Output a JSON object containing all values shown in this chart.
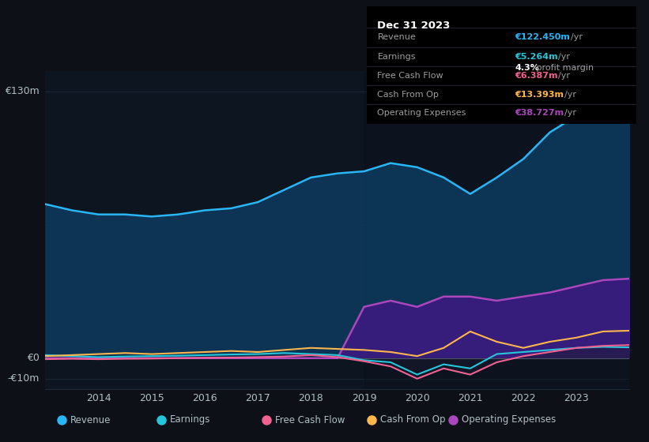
{
  "background_color": "#0d1117",
  "plot_bg_color": "#0d1520",
  "years": [
    2013.0,
    2013.5,
    2014.0,
    2014.5,
    2015.0,
    2015.5,
    2016.0,
    2016.5,
    2017.0,
    2017.5,
    2018.0,
    2018.5,
    2019.0,
    2019.5,
    2020.0,
    2020.5,
    2021.0,
    2021.5,
    2022.0,
    2022.5,
    2023.0,
    2023.5,
    2024.0
  ],
  "revenue": [
    75,
    72,
    70,
    70,
    69,
    70,
    72,
    73,
    76,
    82,
    88,
    90,
    91,
    95,
    93,
    88,
    80,
    88,
    97,
    110,
    118,
    125,
    122
  ],
  "earnings": [
    1.5,
    1.0,
    0.5,
    0.8,
    1.0,
    1.2,
    1.5,
    1.8,
    2.0,
    2.5,
    2.0,
    1.5,
    -1.0,
    -2.0,
    -8.0,
    -3.0,
    -5.0,
    2.0,
    3.0,
    4.0,
    5.0,
    5.5,
    5.264
  ],
  "free_cash_flow": [
    -0.5,
    -0.3,
    -0.5,
    -0.3,
    -0.2,
    0.0,
    0.2,
    0.3,
    0.5,
    0.8,
    1.5,
    0.5,
    -1.5,
    -4.0,
    -10.0,
    -5.0,
    -8.0,
    -2.0,
    1.0,
    3.0,
    5.0,
    6.0,
    6.387
  ],
  "cash_from_op": [
    1.0,
    1.5,
    2.0,
    2.5,
    2.0,
    2.5,
    3.0,
    3.5,
    3.0,
    4.0,
    5.0,
    4.5,
    4.0,
    3.0,
    1.0,
    5.0,
    13.0,
    8.0,
    5.0,
    8.0,
    10.0,
    13.0,
    13.393
  ],
  "operating_expenses": [
    0,
    0,
    0,
    0,
    0,
    0,
    0,
    0,
    0,
    0,
    0,
    0,
    25,
    28,
    25,
    30,
    30,
    28,
    30,
    32,
    35,
    38,
    38.727
  ],
  "revenue_color": "#29b6f6",
  "earnings_color": "#26c6da",
  "free_cash_flow_color": "#f06292",
  "cash_from_op_color": "#ffb74d",
  "operating_expenses_color": "#ab47bc",
  "revenue_fill_color": "#0d3a5e",
  "operating_expenses_fill_color": "#4a148c",
  "grid_color": "#1e2a3a",
  "text_color": "#b0bec5",
  "ylabel_top": "€130m",
  "ylabel_zero": "€0",
  "ylabel_bottom": "-€10m",
  "ylim_min": -15,
  "ylim_max": 140,
  "info_box": {
    "date": "Dec 31 2023",
    "revenue_label": "Revenue",
    "revenue_value": "€122.450m",
    "revenue_unit": "/yr",
    "earnings_label": "Earnings",
    "earnings_value": "€5.264m",
    "earnings_unit": "/yr",
    "margin_text": "4.3%",
    "margin_label": " profit margin",
    "fcf_label": "Free Cash Flow",
    "fcf_value": "€6.387m",
    "fcf_unit": "/yr",
    "cashop_label": "Cash From Op",
    "cashop_value": "€13.393m",
    "cashop_unit": "/yr",
    "opex_label": "Operating Expenses",
    "opex_value": "€38.727m",
    "opex_unit": "/yr"
  },
  "legend": [
    {
      "label": "Revenue",
      "color": "#29b6f6"
    },
    {
      "label": "Earnings",
      "color": "#26c6da"
    },
    {
      "label": "Free Cash Flow",
      "color": "#f06292"
    },
    {
      "label": "Cash From Op",
      "color": "#ffb74d"
    },
    {
      "label": "Operating Expenses",
      "color": "#ab47bc"
    }
  ],
  "xticks": [
    2014,
    2015,
    2016,
    2017,
    2018,
    2019,
    2020,
    2021,
    2022,
    2023
  ]
}
